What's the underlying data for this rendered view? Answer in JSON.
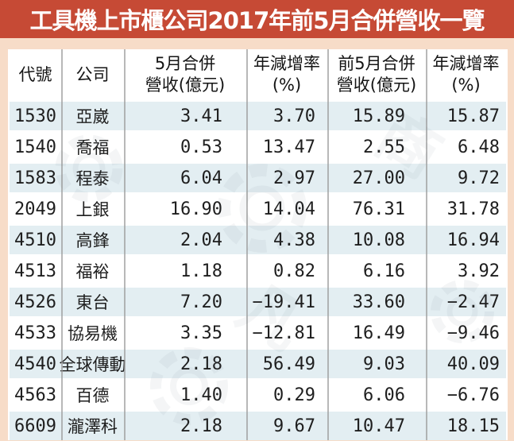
{
  "title": "工具機上市櫃公司2017年前5月合併營收一覽",
  "colors": {
    "title_bg": "#c64a35",
    "title_text": "#ffffff",
    "page_bg": "#f7dcc8",
    "row_bg": "#ffffff",
    "row_alt_bg": "#e3eef2",
    "column_divider": "#9a9a9a",
    "body_text": "#1e1e1e"
  },
  "watermark": {
    "icon": "gear-circle-icon",
    "characters": [
      "商",
      "凡"
    ]
  },
  "chart_data": {
    "type": "table",
    "title": "工具機上市櫃公司2017年前5月合併營收一覽",
    "columns": [
      {
        "line1": "代號",
        "line2": ""
      },
      {
        "line1": "公司",
        "line2": ""
      },
      {
        "line1": "5月合併",
        "line2": "營收(億元)"
      },
      {
        "line1": "年減增率",
        "line2": "(%)"
      },
      {
        "line1": "前5月合併",
        "line2": "營收(億元)"
      },
      {
        "line1": "年減增率",
        "line2": "(%)"
      }
    ],
    "rows": [
      [
        "1530",
        "亞崴",
        "3.41",
        "3.70",
        "15.89",
        "15.87"
      ],
      [
        "1540",
        "喬福",
        "0.53",
        "13.47",
        "2.55",
        "6.48"
      ],
      [
        "1583",
        "程泰",
        "6.04",
        "2.97",
        "27.00",
        "9.72"
      ],
      [
        "2049",
        "上銀",
        "16.90",
        "14.04",
        "76.31",
        "31.78"
      ],
      [
        "4510",
        "高鋒",
        "2.04",
        "4.38",
        "10.08",
        "16.94"
      ],
      [
        "4513",
        "福裕",
        "1.18",
        "0.82",
        "6.16",
        "3.92"
      ],
      [
        "4526",
        "東台",
        "7.20",
        "-19.41",
        "33.60",
        "-2.47"
      ],
      [
        "4533",
        "協易機",
        "3.35",
        "-12.81",
        "16.49",
        "-9.46"
      ],
      [
        "4540",
        "全球傳動",
        "2.18",
        "56.49",
        "9.03",
        "40.09"
      ],
      [
        "4563",
        "百德",
        "1.40",
        "0.29",
        "6.06",
        "-6.76"
      ],
      [
        "6609",
        "瀧澤科",
        "2.18",
        "9.67",
        "10.47",
        "18.15"
      ]
    ]
  }
}
